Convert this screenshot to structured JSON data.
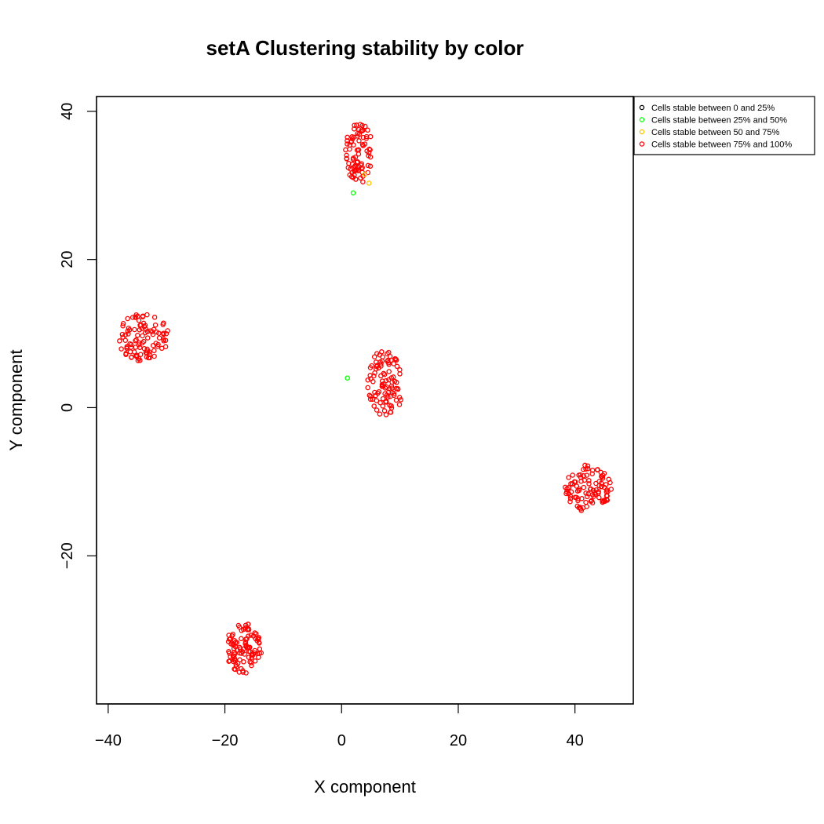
{
  "chart_data": {
    "type": "scatter",
    "title": "setA  Clustering stability by color",
    "xlabel": "X component",
    "ylabel": "Y component",
    "xlim": [
      -42,
      50
    ],
    "ylim": [
      -40,
      42
    ],
    "xticks": [
      -40,
      -20,
      0,
      20,
      40
    ],
    "xtick_labels": [
      "−40",
      "−20",
      "0",
      "20",
      "40"
    ],
    "yticks": [
      -20,
      0,
      20,
      40
    ],
    "ytick_labels": [
      "−20",
      "0",
      "20",
      "40"
    ],
    "grid": false,
    "legend_position": "top-right, outside plot area",
    "series": [
      {
        "name": "Cells stable between 0 and 25%",
        "color": "#000000",
        "points": []
      },
      {
        "name": "Cells stable between 25% and 50%",
        "color": "#00ff00",
        "points": [
          [
            2.0,
            29.0
          ],
          [
            1.0,
            4.0
          ]
        ]
      },
      {
        "name": "Cells stable between 50 and 75%",
        "color": "#ffc000",
        "points": [
          [
            4.7,
            30.3
          ],
          [
            4.0,
            31.5
          ]
        ]
      },
      {
        "name": "Cells stable between 75% and 100%",
        "color": "#ff0000",
        "clusters": [
          {
            "center": [
              3.0,
              34.5
            ],
            "radius_x": 2.5,
            "radius_y": 4.4,
            "count": 85
          },
          {
            "center": [
              -34.0,
              9.5
            ],
            "radius_x": 4.6,
            "radius_y": 3.4,
            "count": 100
          },
          {
            "center": [
              7.5,
              3.3
            ],
            "radius_x": 3.3,
            "radius_y": 4.8,
            "count": 100
          },
          {
            "center": [
              42.3,
              -10.8
            ],
            "radius_x": 4.2,
            "radius_y": 3.5,
            "count": 100
          },
          {
            "center": [
              -16.8,
              -32.5
            ],
            "radius_x": 3.3,
            "radius_y": 3.6,
            "count": 100
          }
        ]
      }
    ]
  }
}
